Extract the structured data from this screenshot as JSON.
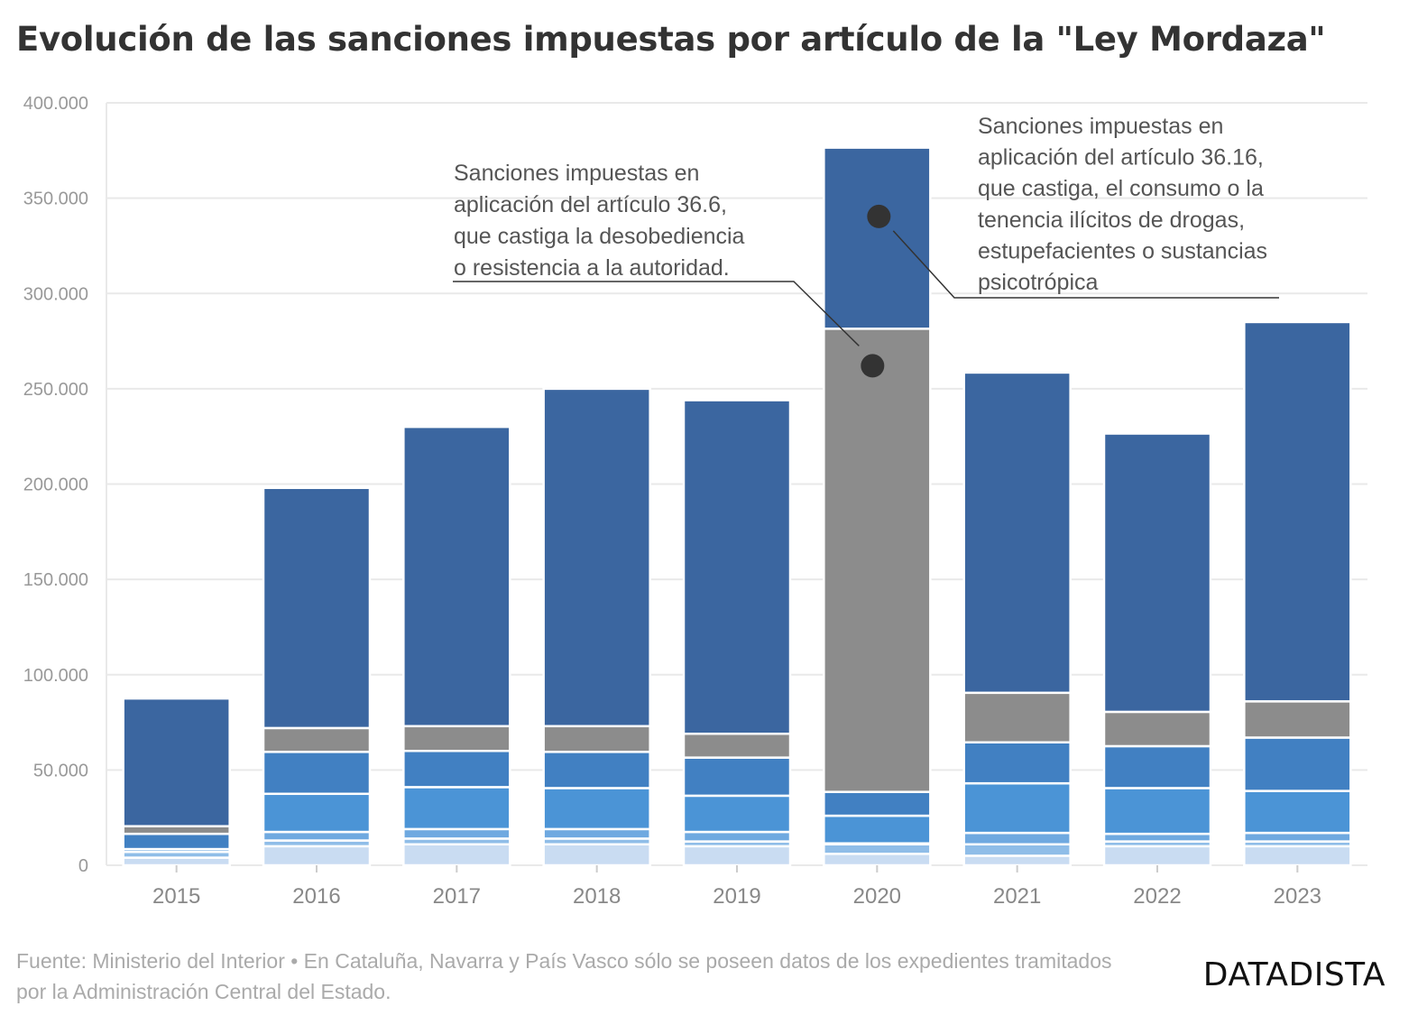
{
  "title": "Evolución de las sanciones impuestas por artículo de la \"Ley Mordaza\"",
  "source": "Fuente: Ministerio del Interior • En Cataluña, Navarra y País Vasco sólo se poseen datos de los expedientes tramitados por la Administración Central del Estado.",
  "logo": "DATADISTA",
  "annotations": {
    "art_36_6": [
      "Sanciones impuestas en",
      "aplicación del artículo 36.6,",
      "que castiga la desobediencia",
      "o resistencia a la autoridad."
    ],
    "art_36_16": [
      "Sanciones impuestas en",
      "aplicación del artículo 36.16,",
      "que castiga, el consumo o la",
      "tenencia ilícitos de drogas,",
      "estupefacientes o sustancias",
      "psicotrópica"
    ]
  },
  "colors": {
    "background": "#ffffff",
    "grid": "#e9e9e9",
    "segment_colors": [
      "#c9dcf2",
      "#8fbde8",
      "#6fa9e0",
      "#4b94d6",
      "#4180c2",
      "#8c8c8c",
      "#3b66a0"
    ]
  },
  "chart_data": {
    "type": "bar",
    "stacked": true,
    "categories": [
      "2015",
      "2016",
      "2017",
      "2018",
      "2019",
      "2020",
      "2021",
      "2022",
      "2023"
    ],
    "series": [
      {
        "values": [
          4000,
          10000,
          11000,
          11000,
          10000,
          6000,
          5000,
          10000,
          10000
        ]
      },
      {
        "values": [
          3000,
          3000,
          3000,
          3000,
          2500,
          5000,
          6000,
          2500,
          2500
        ]
      },
      {
        "values": [
          1500,
          4500,
          5000,
          5000,
          5000,
          500,
          6000,
          4000,
          4500
        ]
      },
      {
        "values": [
          0,
          20000,
          22000,
          21500,
          19000,
          14500,
          26000,
          24000,
          22000
        ]
      },
      {
        "values": [
          8000,
          22000,
          19000,
          19000,
          20000,
          12500,
          21500,
          22000,
          28000
        ]
      },
      {
        "values": [
          4000,
          12500,
          13000,
          13500,
          12500,
          243000,
          26000,
          18000,
          19000
        ]
      },
      {
        "values": [
          67000,
          126000,
          157000,
          177000,
          175000,
          95000,
          168000,
          146000,
          199000
        ]
      }
    ],
    "ylim": [
      0,
      400000
    ],
    "yticks": [
      0,
      50000,
      100000,
      150000,
      200000,
      250000,
      300000,
      350000,
      400000
    ],
    "ytick_labels": [
      "0",
      "50.000",
      "100.000",
      "150.000",
      "200.000",
      "250.000",
      "300.000",
      "350.000",
      "400.000"
    ],
    "grid": true,
    "xlabel": "",
    "ylabel": ""
  }
}
